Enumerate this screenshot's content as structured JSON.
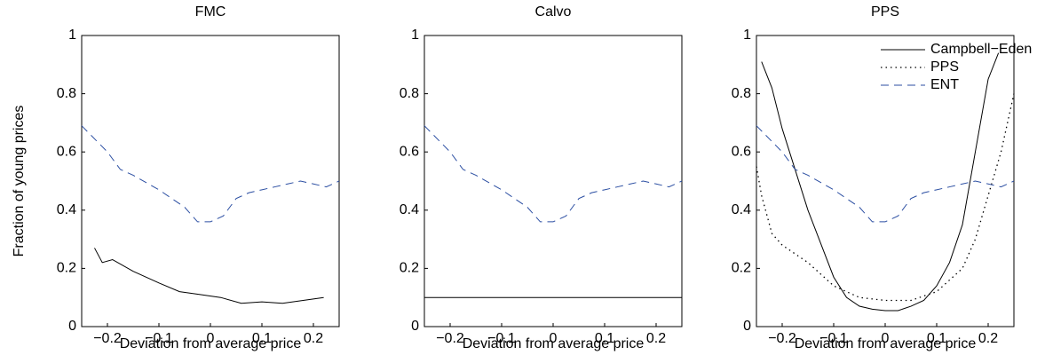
{
  "y_label": "Fraction of young prices",
  "chart_data": [
    {
      "type": "line",
      "title": "FMC",
      "x_label": "Deviation from average price",
      "xlim": [
        -0.25,
        0.25
      ],
      "ylim": [
        0,
        1
      ],
      "xticks": [
        {
          "value": -0.2,
          "label": "−0.2"
        },
        {
          "value": -0.1,
          "label": "−0.1"
        },
        0,
        0.1,
        0.2
      ],
      "yticks": [
        0,
        0.2,
        0.4,
        0.6,
        0.8,
        1
      ],
      "series": [
        {
          "color": "#000000",
          "style": "solid",
          "x": [
            -0.225,
            -0.21,
            -0.19,
            -0.15,
            -0.1,
            -0.06,
            -0.02,
            0.02,
            0.06,
            0.1,
            0.14,
            0.18,
            0.22
          ],
          "values": [
            0.27,
            0.22,
            0.23,
            0.19,
            0.15,
            0.12,
            0.11,
            0.1,
            0.08,
            0.085,
            0.08,
            0.09,
            0.1
          ]
        },
        {
          "color": "#2b4ea2",
          "style": "dashed",
          "x": [
            -0.25,
            -0.2,
            -0.175,
            -0.15,
            -0.1,
            -0.05,
            -0.025,
            0,
            0.025,
            0.05,
            0.075,
            0.1,
            0.125,
            0.15,
            0.175,
            0.2,
            0.225,
            0.25
          ],
          "values": [
            0.69,
            0.6,
            0.54,
            0.52,
            0.47,
            0.41,
            0.36,
            0.36,
            0.38,
            0.44,
            0.46,
            0.47,
            0.48,
            0.49,
            0.5,
            0.49,
            0.48,
            0.5
          ]
        }
      ]
    },
    {
      "type": "line",
      "title": "Calvo",
      "x_label": "Deviation from average price",
      "xlim": [
        -0.25,
        0.25
      ],
      "ylim": [
        0,
        1
      ],
      "xticks": [
        {
          "value": -0.2,
          "label": "−0.2"
        },
        {
          "value": -0.1,
          "label": "−0.1"
        },
        0,
        0.1,
        0.2
      ],
      "yticks": [
        0,
        0.2,
        0.4,
        0.6,
        0.8,
        1
      ],
      "series": [
        {
          "color": "#000000",
          "style": "solid",
          "x": [
            -0.25,
            0.25
          ],
          "values": [
            0.1,
            0.1
          ]
        },
        {
          "color": "#2b4ea2",
          "style": "dashed",
          "x": [
            -0.25,
            -0.2,
            -0.175,
            -0.15,
            -0.1,
            -0.05,
            -0.025,
            0,
            0.025,
            0.05,
            0.075,
            0.1,
            0.125,
            0.15,
            0.175,
            0.2,
            0.225,
            0.25
          ],
          "values": [
            0.69,
            0.6,
            0.54,
            0.52,
            0.47,
            0.41,
            0.36,
            0.36,
            0.38,
            0.44,
            0.46,
            0.47,
            0.48,
            0.49,
            0.5,
            0.49,
            0.48,
            0.5
          ]
        }
      ]
    },
    {
      "type": "line",
      "title": "PPS",
      "x_label": "Deviation from average price",
      "xlim": [
        -0.25,
        0.25
      ],
      "ylim": [
        0,
        1
      ],
      "xticks": [
        {
          "value": -0.2,
          "label": "−0.2"
        },
        {
          "value": -0.1,
          "label": "−0.1"
        },
        0,
        0.1,
        0.2
      ],
      "yticks": [
        0,
        0.2,
        0.4,
        0.6,
        0.8,
        1
      ],
      "legend": "upper right",
      "series": [
        {
          "name": "Campbell−Eden",
          "color": "#000000",
          "style": "solid",
          "x": [
            -0.24,
            -0.22,
            -0.2,
            -0.15,
            -0.1,
            -0.075,
            -0.05,
            -0.025,
            0,
            0.025,
            0.05,
            0.075,
            0.1,
            0.125,
            0.15,
            0.175,
            0.2,
            0.22
          ],
          "values": [
            0.91,
            0.82,
            0.68,
            0.4,
            0.17,
            0.1,
            0.07,
            0.06,
            0.055,
            0.055,
            0.07,
            0.09,
            0.14,
            0.22,
            0.35,
            0.6,
            0.85,
            0.94
          ]
        },
        {
          "name": "PPS",
          "color": "#000000",
          "style": "dotted",
          "x": [
            -0.25,
            -0.24,
            -0.22,
            -0.2,
            -0.15,
            -0.1,
            -0.05,
            0,
            0.05,
            0.1,
            0.15,
            0.175,
            0.2,
            0.225,
            0.25
          ],
          "values": [
            0.55,
            0.45,
            0.32,
            0.28,
            0.22,
            0.14,
            0.1,
            0.09,
            0.09,
            0.12,
            0.2,
            0.3,
            0.45,
            0.6,
            0.8
          ]
        },
        {
          "name": "ENT",
          "color": "#2b4ea2",
          "style": "dashed",
          "x": [
            -0.25,
            -0.2,
            -0.175,
            -0.15,
            -0.1,
            -0.05,
            -0.025,
            0,
            0.025,
            0.05,
            0.075,
            0.1,
            0.125,
            0.15,
            0.175,
            0.2,
            0.225,
            0.25
          ],
          "values": [
            0.69,
            0.6,
            0.54,
            0.52,
            0.47,
            0.41,
            0.36,
            0.36,
            0.38,
            0.44,
            0.46,
            0.47,
            0.48,
            0.49,
            0.5,
            0.49,
            0.48,
            0.5
          ]
        }
      ]
    }
  ]
}
